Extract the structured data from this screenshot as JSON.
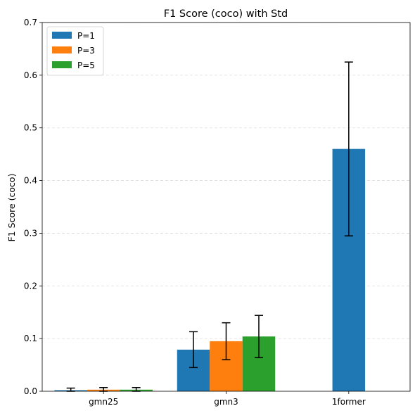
{
  "chart_data": {
    "type": "bar",
    "title": "F1 Score (coco) with Std",
    "xlabel": "",
    "ylabel": "F1 Score (coco)",
    "ylim": [
      0,
      0.7
    ],
    "yticks": [
      0.0,
      0.1,
      0.2,
      0.3,
      0.4,
      0.5,
      0.6,
      0.7
    ],
    "ytick_labels": [
      "0.0",
      "0.1",
      "0.2",
      "0.3",
      "0.4",
      "0.5",
      "0.6",
      "0.7"
    ],
    "grid": "y-dashed",
    "legend_position": "top-left",
    "categories": [
      "gmn25",
      "gmn3",
      "1former"
    ],
    "series": [
      {
        "name": "P=1",
        "color": "#1f77b4",
        "values": [
          0.002,
          0.079,
          0.46
        ],
        "std": [
          0.004,
          0.034,
          0.165
        ]
      },
      {
        "name": "P=3",
        "color": "#ff7f0e",
        "values": [
          0.003,
          0.095,
          null
        ],
        "std": [
          0.004,
          0.035,
          null
        ]
      },
      {
        "name": "P=5",
        "color": "#2ca02c",
        "values": [
          0.003,
          0.104,
          null
        ],
        "std": [
          0.004,
          0.04,
          null
        ]
      }
    ]
  }
}
